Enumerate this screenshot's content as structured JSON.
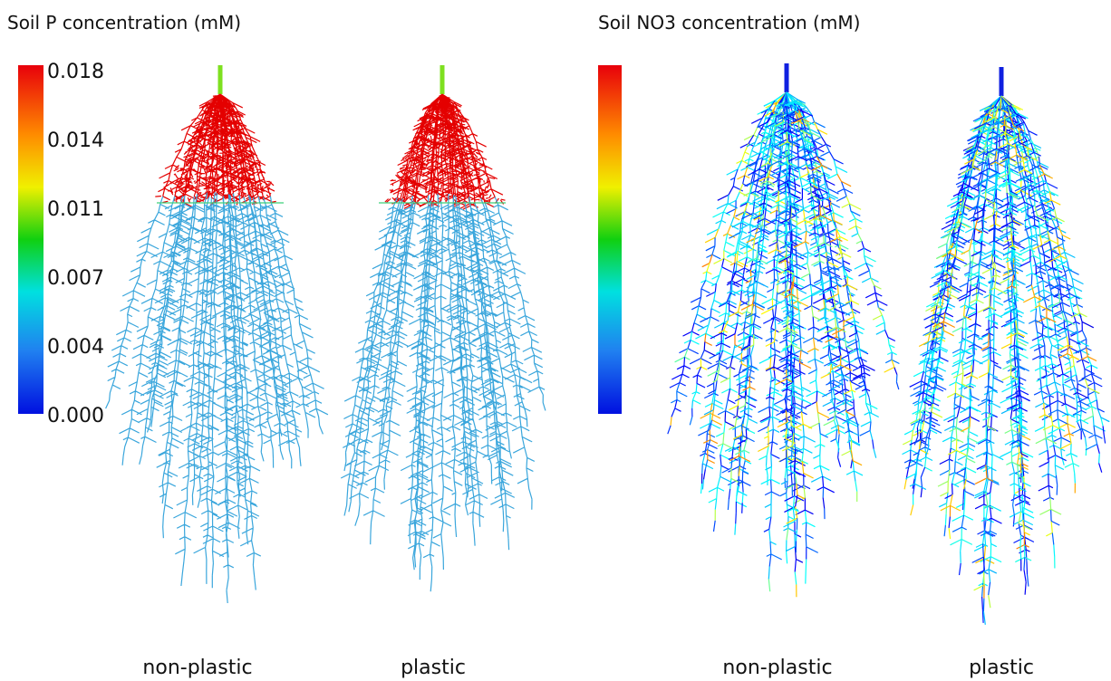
{
  "left_panel": {
    "title": "Soil P concentration (mM)",
    "colorbar_ticks": [
      "0.018",
      "0.014",
      "0.011",
      "0.007",
      "0.004",
      "0.000"
    ],
    "labels": [
      "non-plastic",
      "plastic"
    ]
  },
  "right_panel": {
    "title": "Soil NO3 concentration (mM)",
    "labels": [
      "non-plastic",
      "plastic"
    ]
  }
}
